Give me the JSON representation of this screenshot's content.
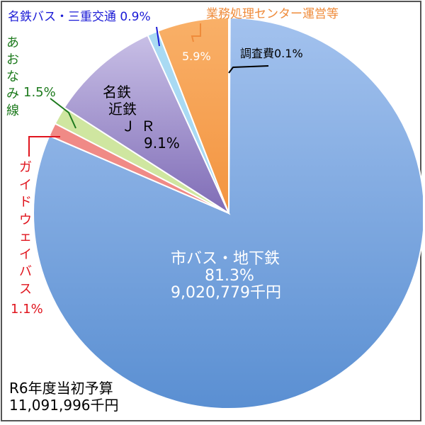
{
  "chart_data": {
    "type": "pie",
    "slices": [
      {
        "label": "調査費0.1%",
        "value": 0.1,
        "color": "#8fb2e3"
      },
      {
        "label": "市バス・地下鉄",
        "value": 81.3,
        "amount": "9,020,779千円",
        "color": "#7ea6de"
      },
      {
        "label": "ガイドウェイバス",
        "value": 1.1,
        "color": "#f08a86"
      },
      {
        "label": "あおなみ線",
        "value": 1.5,
        "color": "#cfe6a0"
      },
      {
        "label": "名鉄 近鉄 ＪＲ",
        "value": 9.1,
        "color": "#a898cf"
      },
      {
        "label": "名鉄バス・三重交通",
        "value": 0.9,
        "color": "#a9daf3"
      },
      {
        "label": "業務処理センター運営等",
        "value": 5.9,
        "color": "#f6a25a"
      }
    ],
    "start": "top",
    "direction": "clockwise",
    "legend": "none"
  },
  "labels": {
    "chousa": "調査費0.1%",
    "main_name": "市バス・地下鉄",
    "main_pct": "81.3%",
    "main_amount": "9,020,779千円",
    "rail_line1": "名鉄",
    "rail_line2": "近鉄",
    "rail_line3": "ＪＲ",
    "rail_pct": "9.1%",
    "gyomu_name": "業務処理センター運営等",
    "gyomu_pct": "5.9%",
    "meitetsu_bus": "名鉄バス・三重交通 0.9%",
    "aonami": "あおなみ線",
    "aonami_pct": "1.5%",
    "guideway": "ガイドウェイバス",
    "guideway_pct": "1.1%"
  },
  "summary": {
    "title": "R6年度当初予算",
    "total": "11,091,996千円"
  }
}
